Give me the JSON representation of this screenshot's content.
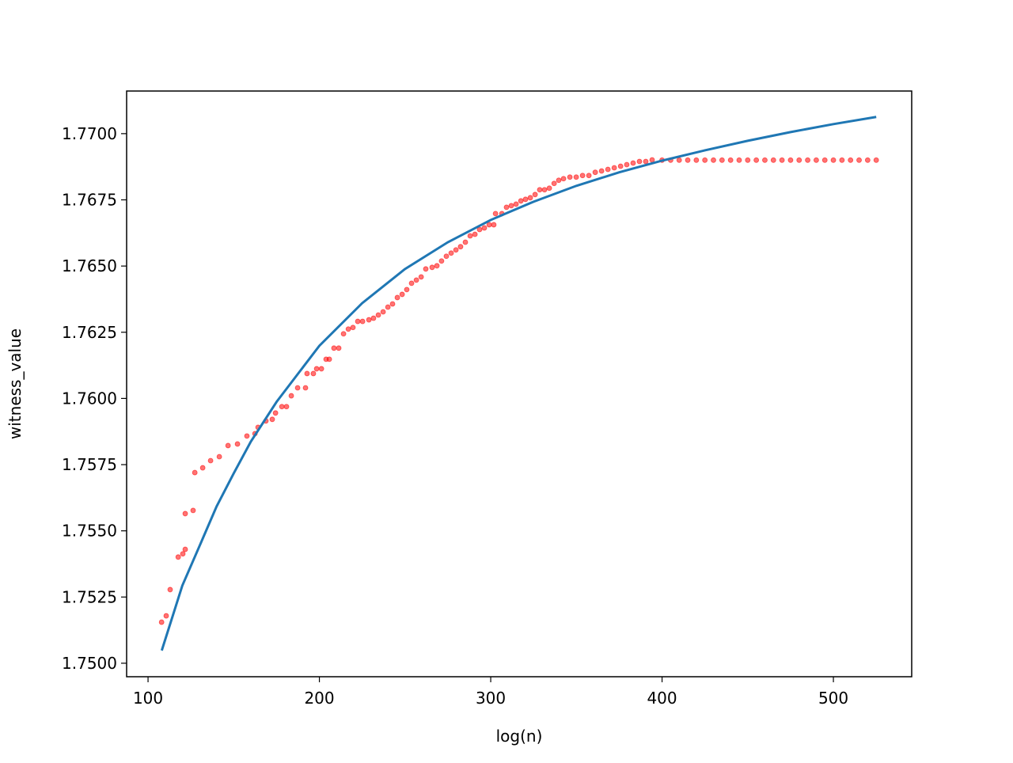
{
  "chart_data": {
    "type": "scatter",
    "xlabel": "log(n)",
    "ylabel": "witness_value",
    "xlim": [
      87.5,
      545.7
    ],
    "ylim": [
      1.74949,
      1.77161
    ],
    "xticks": [
      100,
      200,
      300,
      400,
      500
    ],
    "yticks": [
      {
        "value": 1.75,
        "label": "1.7500"
      },
      1.7525,
      {
        "value": 1.755,
        "label": "1.7550"
      },
      1.7575,
      {
        "value": 1.76,
        "label": "1.7600"
      },
      1.7625,
      {
        "value": 1.765,
        "label": "1.7650"
      },
      1.7675,
      {
        "value": 1.77,
        "label": "1.7700"
      }
    ],
    "series": [
      {
        "type": "scatter",
        "color": "#ff0000",
        "x": [
          107.9,
          110.6,
          112.9,
          117.6,
          120.3,
          121.7,
          121.7,
          126.3,
          127.3,
          131.9,
          136.5,
          141.6,
          146.7,
          152.2,
          157.7,
          162.4,
          164.2,
          168.8,
          172.5,
          174.4,
          178.1,
          180.8,
          183.6,
          187.3,
          191.9,
          192.8,
          196.5,
          198.4,
          201.2,
          203.9,
          205.8,
          208.5,
          211.3,
          214.1,
          216.9,
          219.6,
          222.4,
          225.2,
          228.9,
          231.6,
          234.4,
          237.2,
          240.0,
          242.7,
          245.5,
          248.3,
          251.0,
          253.8,
          256.6,
          259.4,
          262.1,
          265.8,
          268.6,
          271.3,
          274.1,
          276.9,
          279.7,
          282.4,
          285.2,
          288.0,
          290.8,
          293.5,
          296.3,
          299.1,
          301.8,
          302.8,
          306.5,
          309.2,
          312.0,
          314.8,
          317.6,
          320.3,
          323.1,
          325.9,
          328.6,
          331.4,
          334.2,
          337.0,
          339.7,
          342.5,
          346.2,
          349.9,
          353.6,
          357.3,
          361.0,
          364.7,
          368.4,
          372.1,
          375.8,
          379.4,
          383.1,
          386.8,
          390.5,
          394.2,
          400,
          405,
          410,
          415,
          420,
          425,
          430,
          435,
          440,
          445,
          450,
          455,
          460,
          465,
          470,
          475,
          480,
          485,
          490,
          495,
          500,
          505,
          510,
          515,
          520,
          525
        ],
        "values": [
          1.75155,
          1.75179,
          1.75278,
          1.75401,
          1.75413,
          1.7543,
          1.75565,
          1.75577,
          1.7572,
          1.75738,
          1.75765,
          1.7578,
          1.75822,
          1.75828,
          1.75858,
          1.75867,
          1.75891,
          1.75915,
          1.75921,
          1.75945,
          1.75969,
          1.75969,
          1.7601,
          1.7604,
          1.7604,
          1.76094,
          1.76094,
          1.76112,
          1.76112,
          1.76148,
          1.76148,
          1.7619,
          1.7619,
          1.76244,
          1.76262,
          1.76268,
          1.76291,
          1.76291,
          1.76297,
          1.76303,
          1.76315,
          1.76327,
          1.76345,
          1.76357,
          1.76381,
          1.76393,
          1.76411,
          1.76435,
          1.76447,
          1.76459,
          1.76489,
          1.76495,
          1.76501,
          1.76519,
          1.76537,
          1.76549,
          1.76561,
          1.76573,
          1.7659,
          1.76614,
          1.7662,
          1.76638,
          1.76644,
          1.76656,
          1.76656,
          1.76698,
          1.76698,
          1.76722,
          1.76728,
          1.76734,
          1.76746,
          1.76752,
          1.76758,
          1.7677,
          1.76788,
          1.76788,
          1.76794,
          1.76812,
          1.76824,
          1.7683,
          1.76836,
          1.76836,
          1.76842,
          1.76842,
          1.76854,
          1.76859,
          1.76865,
          1.76871,
          1.76877,
          1.76883,
          1.76889,
          1.76895,
          1.76895,
          1.76901,
          1.769,
          1.769,
          1.769,
          1.769,
          1.769,
          1.769,
          1.769,
          1.769,
          1.769,
          1.769,
          1.769,
          1.769,
          1.769,
          1.769,
          1.769,
          1.769,
          1.769,
          1.769,
          1.769,
          1.769,
          1.769,
          1.769,
          1.769,
          1.769,
          1.769,
          1.769
        ]
      },
      {
        "type": "line",
        "color": "#1f77b4",
        "x": [
          108,
          120,
          130,
          140,
          150,
          160,
          175,
          200,
          225,
          250,
          275,
          300,
          325,
          350,
          375,
          400,
          425,
          450,
          475,
          500,
          525
        ],
        "values": [
          1.75048,
          1.75293,
          1.75442,
          1.75592,
          1.75717,
          1.75837,
          1.75987,
          1.76199,
          1.7636,
          1.76489,
          1.7659,
          1.76674,
          1.76743,
          1.76803,
          1.76854,
          1.76898,
          1.76937,
          1.76973,
          1.77006,
          1.77036,
          1.77063
        ]
      }
    ]
  }
}
